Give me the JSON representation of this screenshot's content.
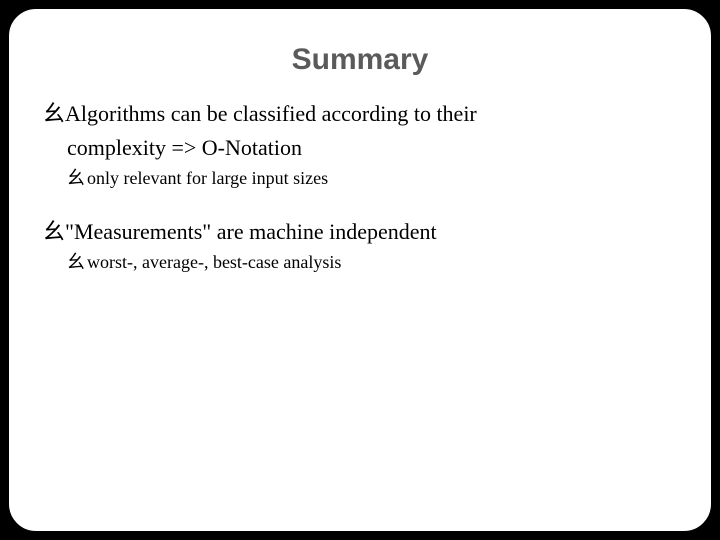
{
  "slide": {
    "title": "Summary",
    "title_color": "#5a5a5a",
    "title_fontsize": 30,
    "background": "#ffffff",
    "border_radius": 28,
    "bullet_glyph": "⺓",
    "items": [
      {
        "text_line1": "Algorithms can be classified according to their",
        "text_line2": "complexity => O-Notation",
        "sub": [
          {
            "text": "only relevant for large input sizes"
          }
        ]
      },
      {
        "text_line1": "\"Measurements\" are machine independent",
        "text_line2": "",
        "sub": [
          {
            "text": "worst-, average-, best-case analysis"
          }
        ]
      }
    ]
  }
}
